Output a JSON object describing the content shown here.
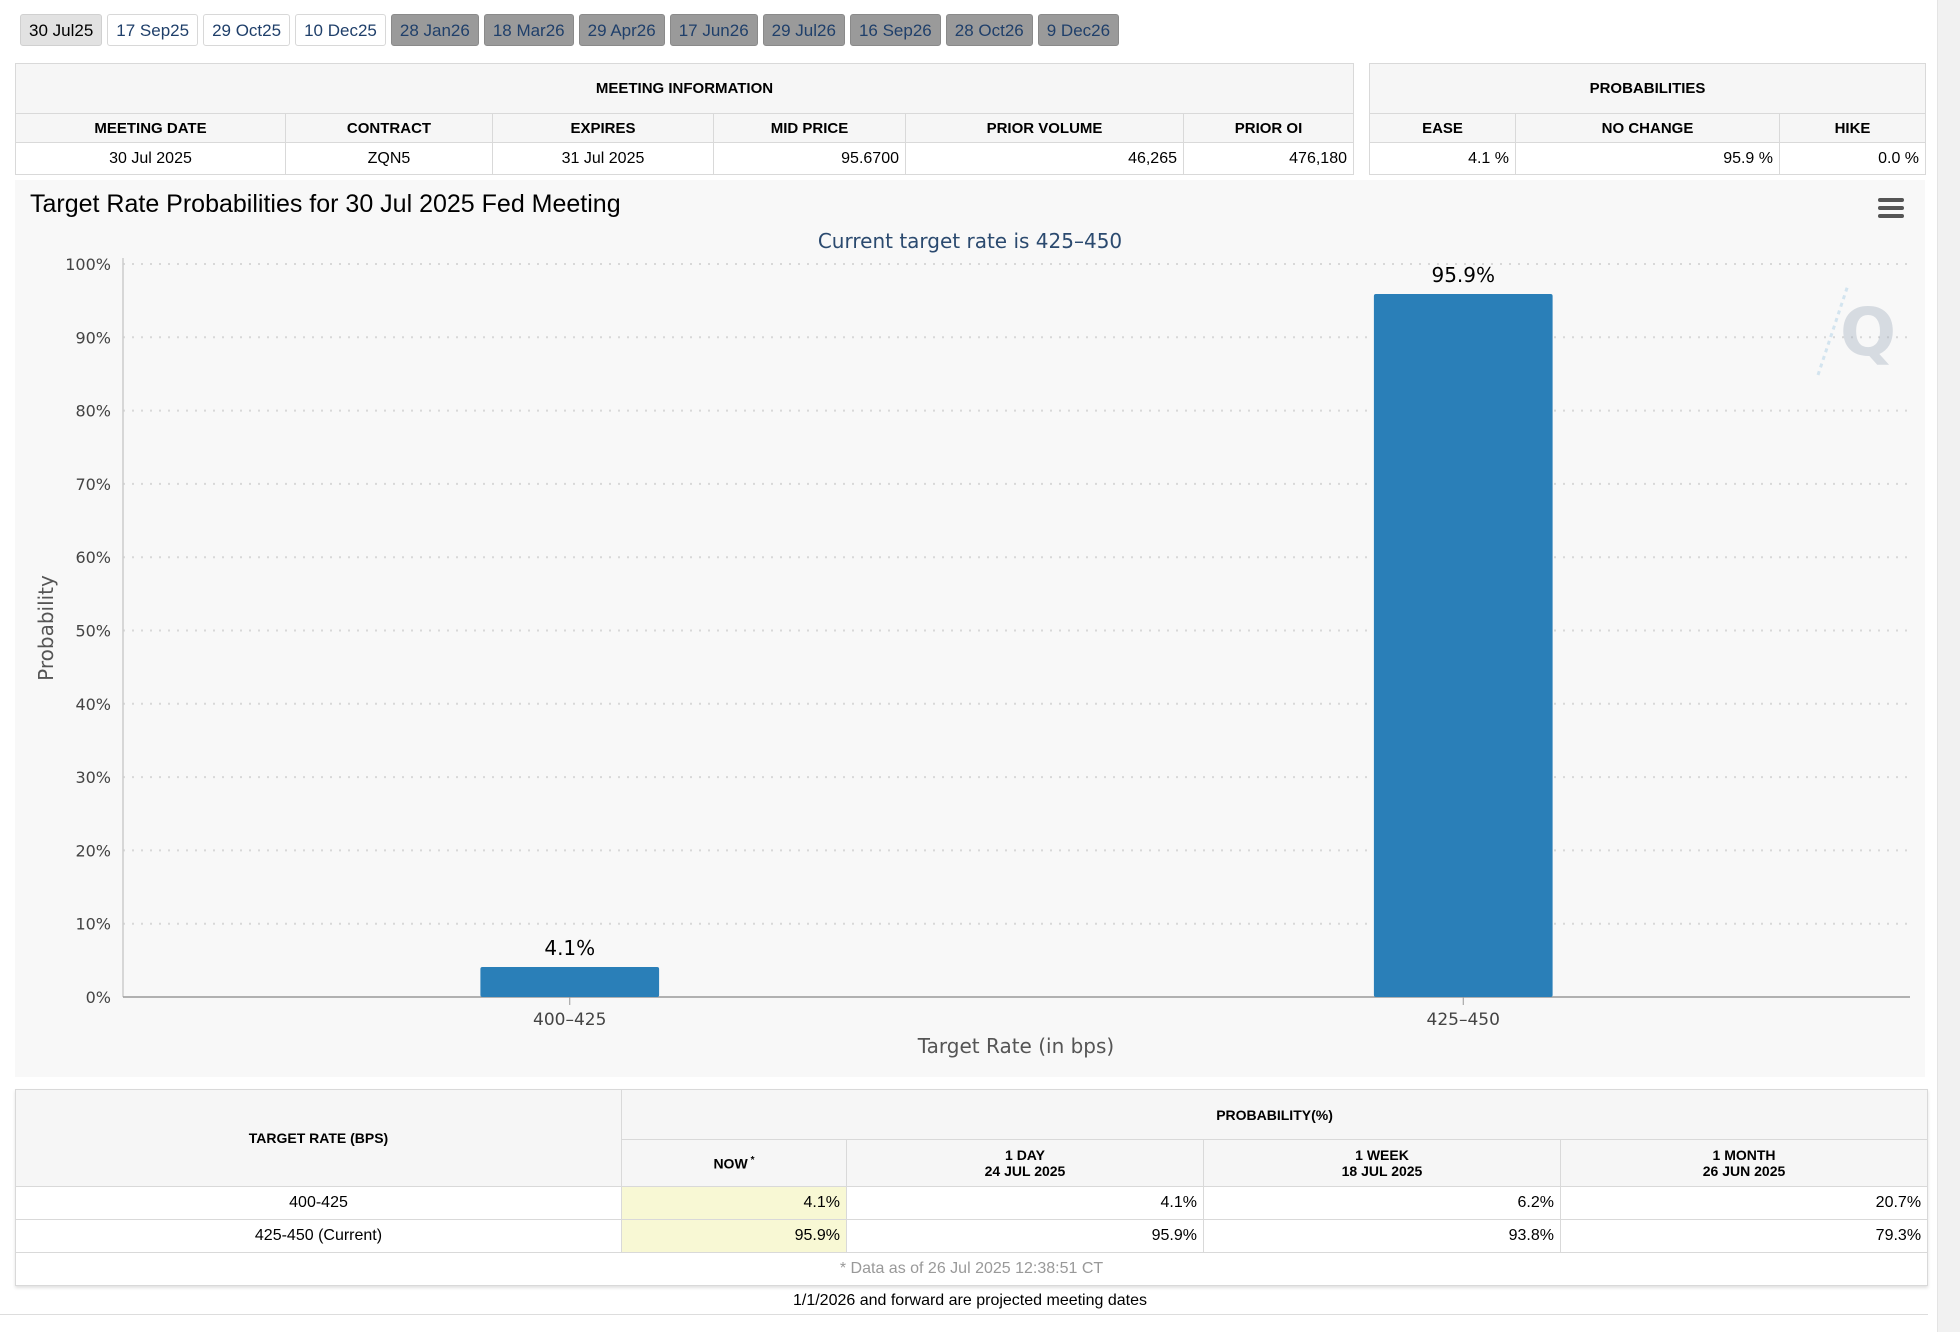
{
  "tabs": [
    {
      "label": "30 Jul25",
      "state": "active"
    },
    {
      "label": "17 Sep25",
      "state": "normal"
    },
    {
      "label": "29 Oct25",
      "state": "normal"
    },
    {
      "label": "10 Dec25",
      "state": "normal"
    },
    {
      "label": "28 Jan26",
      "state": "proj"
    },
    {
      "label": "18 Mar26",
      "state": "proj"
    },
    {
      "label": "29 Apr26",
      "state": "proj"
    },
    {
      "label": "17 Jun26",
      "state": "proj"
    },
    {
      "label": "29 Jul26",
      "state": "proj"
    },
    {
      "label": "16 Sep26",
      "state": "proj"
    },
    {
      "label": "28 Oct26",
      "state": "proj"
    },
    {
      "label": "9 Dec26",
      "state": "proj"
    }
  ],
  "meeting": {
    "heading": "MEETING INFORMATION",
    "headers": [
      "MEETING DATE",
      "CONTRACT",
      "EXPIRES",
      "MID PRICE",
      "PRIOR VOLUME",
      "PRIOR OI"
    ],
    "values": [
      "30 Jul 2025",
      "ZQN5",
      "31 Jul 2025",
      "95.6700",
      "46,265",
      "476,180"
    ]
  },
  "probabilities": {
    "heading": "PROBABILITIES",
    "headers": [
      "EASE",
      "NO CHANGE",
      "HIKE"
    ],
    "values": [
      "4.1 %",
      "95.9 %",
      "0.0 %"
    ]
  },
  "chart": {
    "title": "Target Rate Probabilities for 30 Jul 2025 Fed Meeting"
  },
  "chart_data": {
    "type": "bar",
    "title": "Target Rate Probabilities for 30 Jul 2025 Fed Meeting",
    "subtitle": "Current target rate is 425–450",
    "categories": [
      "400–425",
      "425–450"
    ],
    "values": [
      4.1,
      95.9
    ],
    "value_labels": [
      "4.1%",
      "95.9%"
    ],
    "xlabel": "Target Rate (in bps)",
    "ylabel": "Probability",
    "ylim": [
      0,
      100
    ],
    "yticks": [
      "0%",
      "10%",
      "20%",
      "30%",
      "40%",
      "50%",
      "60%",
      "70%",
      "80%",
      "90%",
      "100%"
    ],
    "bar_color": "#2a7fb8",
    "grid": true
  },
  "prob_table": {
    "col_target": "TARGET RATE (BPS)",
    "col_prob": "PROBABILITY(%)",
    "now_label": "NOW",
    "now_mark": "*",
    "periods": [
      {
        "label": "1 DAY",
        "date": "24 JUL 2025"
      },
      {
        "label": "1 WEEK",
        "date": "18 JUL 2025"
      },
      {
        "label": "1 MONTH",
        "date": "26 JUN 2025"
      }
    ],
    "rows": [
      {
        "rate": "400-425",
        "now": "4.1%",
        "day": "4.1%",
        "week": "6.2%",
        "month": "20.7%"
      },
      {
        "rate": "425-450 (Current)",
        "now": "95.9%",
        "day": "95.9%",
        "week": "93.8%",
        "month": "79.3%"
      }
    ],
    "note": "* Data as of 26 Jul 2025 12:38:51 CT"
  },
  "footer": "1/1/2026 and forward are projected meeting dates",
  "colors": {
    "bar": "#2a7fb8",
    "now_bg": "#f8f8d4",
    "tab_projected": "#9a9a9a"
  }
}
